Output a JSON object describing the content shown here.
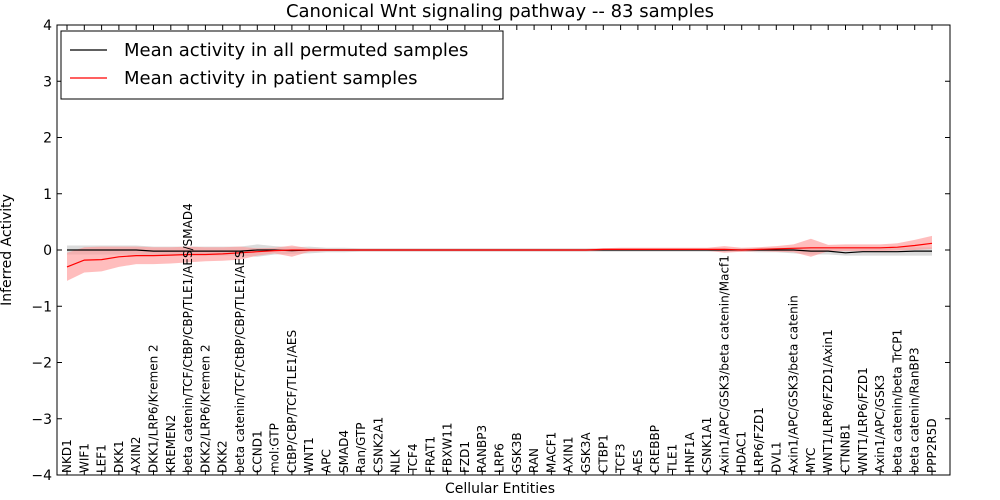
{
  "chart_data": {
    "type": "line",
    "title": "Canonical Wnt signaling pathway -- 83 samples",
    "xlabel": "Cellular Entities",
    "ylabel": "Inferred Activity",
    "ylim": [
      -4,
      4
    ],
    "yticks": [
      "4",
      "3",
      "2",
      "1",
      "0",
      "−1",
      "−2",
      "−3",
      "−4"
    ],
    "grid": false,
    "legend_position": "top-left",
    "categories": [
      "NKD1",
      "WIF1",
      "LEF1",
      "DKK1",
      "AXIN2",
      "DKK1/LRP6/Kremen 2",
      "KREMEN2",
      "beta catenin/TCF/CtBP/CBP/TLE1/AES/SMAD4",
      "DKK2/LRP6/Kremen 2",
      "DKK2",
      "beta catenin/TCF/CtBP/CBP/TLE1/AES",
      "CCND1",
      "mol:GTP",
      "CtBP/CBP/TCF/TLE1/AES",
      "WNT1",
      "APC",
      "SMAD4",
      "Ran/GTP",
      "CSNK2A1",
      "NLK",
      "TCF4",
      "FRAT1",
      "FBXW11",
      "FZD1",
      "RANBP3",
      "LRP6",
      "GSK3B",
      "RAN",
      "MACF1",
      "AXIN1",
      "GSK3A",
      "CTBP1",
      "TCF3",
      "AES",
      "CREBBP",
      "TLE1",
      "HNF1A",
      "CSNK1A1",
      "Axin1/APC/GSK3/beta catenin/Macf1",
      "HDAC1",
      "LRP6/FZD1",
      "DVL1",
      "Axin1/APC/GSK3/beta catenin",
      "MYC",
      "WNT1/LRP6/FZD1/Axin1",
      "CTNNB1",
      "WNT1/LRP6/FZD1",
      "Axin1/APC/GSK3",
      "beta catenin/beta TrCP1",
      "beta catenin/RanBP3",
      "PPP2R5D"
    ],
    "series": [
      {
        "name": "Mean activity in all permuted samples",
        "color": "#000000",
        "band_color": "#b0b0b0",
        "values": [
          0.0,
          0.0,
          0.0,
          0.0,
          0.0,
          -0.02,
          -0.02,
          -0.02,
          -0.02,
          -0.02,
          -0.02,
          0.0,
          0.0,
          -0.01,
          0.0,
          0.0,
          0.0,
          0.0,
          0.0,
          0.0,
          0.0,
          0.0,
          0.0,
          0.0,
          0.0,
          0.0,
          0.0,
          0.0,
          0.0,
          0.0,
          0.0,
          0.0,
          0.0,
          0.0,
          0.0,
          0.0,
          0.0,
          0.0,
          0.0,
          0.0,
          0.0,
          0.0,
          0.0,
          -0.02,
          -0.02,
          -0.05,
          -0.03,
          -0.03,
          -0.03,
          -0.02,
          -0.02
        ],
        "upper": [
          0.08,
          0.08,
          0.08,
          0.08,
          0.08,
          0.06,
          0.06,
          0.06,
          0.06,
          0.06,
          0.06,
          0.1,
          0.07,
          0.05,
          0.06,
          0.04,
          0.04,
          0.03,
          0.03,
          0.03,
          0.03,
          0.03,
          0.03,
          0.03,
          0.03,
          0.03,
          0.03,
          0.03,
          0.03,
          0.03,
          0.03,
          0.03,
          0.03,
          0.03,
          0.03,
          0.03,
          0.03,
          0.03,
          0.03,
          0.03,
          0.04,
          0.04,
          0.05,
          0.05,
          0.05,
          0.05,
          0.05,
          0.05,
          0.05,
          0.05,
          0.05
        ],
        "lower": [
          -0.08,
          -0.08,
          -0.08,
          -0.08,
          -0.08,
          -0.1,
          -0.1,
          -0.1,
          -0.1,
          -0.1,
          -0.1,
          -0.12,
          -0.08,
          -0.07,
          -0.06,
          -0.04,
          -0.04,
          -0.03,
          -0.03,
          -0.03,
          -0.03,
          -0.03,
          -0.03,
          -0.03,
          -0.03,
          -0.03,
          -0.03,
          -0.03,
          -0.03,
          -0.03,
          -0.03,
          -0.03,
          -0.03,
          -0.03,
          -0.03,
          -0.03,
          -0.03,
          -0.03,
          -0.03,
          -0.03,
          -0.04,
          -0.04,
          -0.06,
          -0.08,
          -0.08,
          -0.1,
          -0.1,
          -0.1,
          -0.1,
          -0.1,
          -0.1
        ]
      },
      {
        "name": "Mean activity in patient samples",
        "color": "#ff0000",
        "band_color": "#ff9999",
        "values": [
          -0.3,
          -0.18,
          -0.17,
          -0.12,
          -0.1,
          -0.1,
          -0.09,
          -0.08,
          -0.08,
          -0.07,
          -0.05,
          -0.03,
          -0.01,
          0.0,
          0.0,
          0.0,
          0.0,
          0.0,
          0.0,
          0.0,
          0.0,
          0.0,
          0.0,
          0.0,
          0.0,
          0.0,
          0.0,
          0.0,
          0.0,
          0.0,
          0.0,
          0.01,
          0.01,
          0.01,
          0.01,
          0.01,
          0.01,
          0.01,
          0.01,
          0.0,
          0.01,
          0.02,
          0.03,
          0.04,
          0.04,
          0.04,
          0.04,
          0.04,
          0.05,
          0.08,
          0.12
        ],
        "upper": [
          -0.05,
          0.05,
          0.06,
          0.06,
          0.06,
          0.05,
          0.05,
          0.06,
          0.05,
          0.05,
          0.06,
          0.03,
          0.04,
          0.08,
          0.03,
          0.02,
          0.02,
          0.02,
          0.02,
          0.02,
          0.02,
          0.02,
          0.02,
          0.02,
          0.02,
          0.02,
          0.02,
          0.02,
          0.02,
          0.02,
          0.02,
          0.03,
          0.04,
          0.04,
          0.04,
          0.04,
          0.04,
          0.04,
          0.07,
          0.04,
          0.05,
          0.07,
          0.1,
          0.2,
          0.09,
          0.1,
          0.1,
          0.1,
          0.12,
          0.18,
          0.25
        ],
        "lower": [
          -0.55,
          -0.4,
          -0.38,
          -0.3,
          -0.25,
          -0.25,
          -0.24,
          -0.22,
          -0.2,
          -0.19,
          -0.17,
          -0.1,
          -0.06,
          -0.12,
          -0.03,
          -0.02,
          -0.02,
          -0.02,
          -0.02,
          -0.02,
          -0.02,
          -0.02,
          -0.02,
          -0.02,
          -0.02,
          -0.02,
          -0.02,
          -0.02,
          -0.02,
          -0.02,
          -0.02,
          -0.01,
          -0.01,
          -0.01,
          -0.01,
          -0.01,
          -0.01,
          -0.01,
          -0.05,
          -0.03,
          -0.02,
          -0.03,
          -0.04,
          -0.12,
          -0.02,
          -0.02,
          -0.02,
          -0.02,
          -0.01,
          0.0,
          0.02
        ]
      }
    ]
  }
}
